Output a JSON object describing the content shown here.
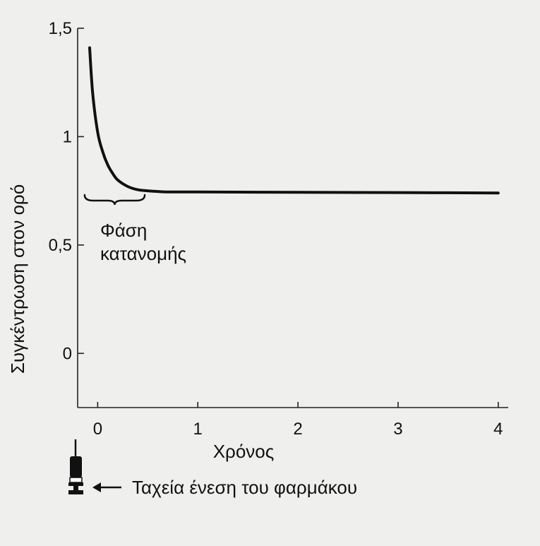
{
  "chart_data": {
    "type": "line",
    "ylabel": "Συγκέντρωση στον ορό",
    "xlabel": "Χρόνος",
    "x_ticks": [
      "0",
      "1",
      "2",
      "3",
      "4"
    ],
    "y_ticks": [
      "0",
      "0,5",
      "1",
      "1,5"
    ],
    "xlim": [
      -0.2,
      4.1
    ],
    "ylim": [
      -0.25,
      1.5
    ],
    "grid": false,
    "series": [
      {
        "x": [
          -0.08,
          -0.05,
          0.0,
          0.05,
          0.1,
          0.15,
          0.2,
          0.3,
          0.4,
          0.5,
          0.6,
          0.7,
          1.0,
          2.0,
          3.0,
          4.0
        ],
        "y": [
          1.41,
          1.2,
          1.02,
          0.93,
          0.87,
          0.83,
          0.8,
          0.77,
          0.755,
          0.75,
          0.747,
          0.745,
          0.745,
          0.743,
          0.742,
          0.74
        ]
      }
    ],
    "annotations": [
      {
        "text_lines": [
          "Φάση",
          "κατανομής"
        ],
        "brace_x": [
          -0.13,
          0.47
        ]
      },
      {
        "text": "Ταχεία ένεση του φαρμάκου",
        "icon": "syringe-icon",
        "arrow": "left"
      }
    ]
  }
}
